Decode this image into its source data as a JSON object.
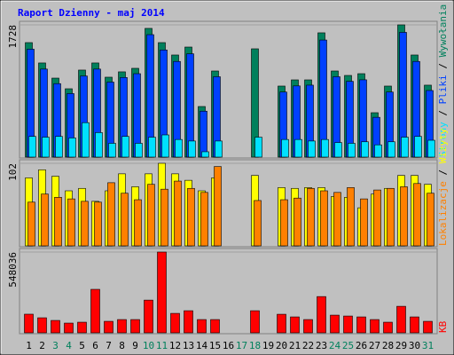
{
  "chart_data": [
    {
      "type": "bar",
      "title": "Raport Dzienny -  maj 2014",
      "ylim": [
        0,
        1728
      ],
      "yticks": [
        1728
      ],
      "legend_separator": " / ",
      "series": [
        {
          "name": "Wywołania",
          "color": "#00805c",
          "values": [
            1496,
            1230,
            1032,
            893,
            1137,
            1230,
            1044,
            1114,
            1160,
            1682,
            1496,
            1334,
            1438,
            661,
            1125,
            0,
            0,
            1415,
            0,
            928,
            1009,
            1009,
            1624,
            1125,
            1067,
            1090,
            580,
            928,
            1728,
            1334,
            940
          ]
        },
        {
          "name": "Pliki",
          "color": "#0040ff",
          "values": [
            1410,
            1150,
            960,
            830,
            1060,
            1150,
            980,
            1040,
            1090,
            1600,
            1400,
            1250,
            1350,
            600,
            1050,
            0,
            0,
            0,
            0,
            850,
            930,
            940,
            1530,
            1050,
            990,
            1010,
            520,
            850,
            1630,
            1250,
            870
          ]
        },
        {
          "name": "Strony",
          "color": "#00e0ff",
          "values": [
            270,
            260,
            270,
            250,
            450,
            320,
            180,
            270,
            180,
            260,
            290,
            230,
            210,
            70,
            210,
            0,
            0,
            260,
            0,
            230,
            230,
            210,
            230,
            190,
            180,
            200,
            160,
            200,
            260,
            270,
            220
          ]
        }
      ]
    },
    {
      "type": "bar",
      "ylim": [
        0,
        102
      ],
      "yticks": [
        102
      ],
      "legend_separator": " / ",
      "series": [
        {
          "name": "Wizyty",
          "color": "#ffff00",
          "values": [
            84,
            94,
            86,
            68,
            71,
            55,
            68,
            89,
            73,
            89,
            102,
            89,
            81,
            68,
            84,
            0,
            0,
            87,
            0,
            72,
            71,
            72,
            72,
            61,
            60,
            47,
            64,
            71,
            87,
            87,
            76
          ]
        },
        {
          "name": "Lokalizacje",
          "color": "#ff8000",
          "values": [
            54,
            64,
            60,
            58,
            55,
            54,
            78,
            65,
            57,
            76,
            70,
            80,
            71,
            66,
            98,
            0,
            0,
            56,
            0,
            57,
            59,
            71,
            68,
            66,
            72,
            58,
            69,
            71,
            73,
            77,
            65
          ]
        }
      ]
    },
    {
      "type": "bar",
      "ylim": [
        0,
        548036
      ],
      "yticks": [
        548036
      ],
      "series": [
        {
          "name": "KB",
          "color": "#ff0000",
          "values": [
            126467,
            102000,
            84000,
            66000,
            72000,
            295000,
            78000,
            90000,
            90000,
            222000,
            548036,
            132000,
            150000,
            90000,
            90000,
            0,
            0,
            150000,
            0,
            126000,
            108000,
            90000,
            246000,
            120000,
            114000,
            108000,
            90000,
            72000,
            180000,
            108000,
            78000
          ]
        }
      ],
      "categories": [
        "1",
        "2",
        "3",
        "4",
        "5",
        "6",
        "7",
        "8",
        "9",
        "10",
        "11",
        "12",
        "13",
        "14",
        "15",
        "16",
        "17",
        "18",
        "19",
        "20",
        "21",
        "22",
        "23",
        "24",
        "25",
        "26",
        "27",
        "28",
        "29",
        "30",
        "31"
      ],
      "category_colors": [
        "#000000",
        "#000000",
        "#00805c",
        "#00805c",
        "#000000",
        "#000000",
        "#000000",
        "#000000",
        "#000000",
        "#00805c",
        "#00805c",
        "#000000",
        "#000000",
        "#000000",
        "#000000",
        "#000000",
        "#00805c",
        "#00805c",
        "#000000",
        "#000000",
        "#000000",
        "#000000",
        "#000000",
        "#00805c",
        "#00805c",
        "#000000",
        "#000000",
        "#000000",
        "#000000",
        "#000000",
        "#00805c"
      ]
    }
  ]
}
